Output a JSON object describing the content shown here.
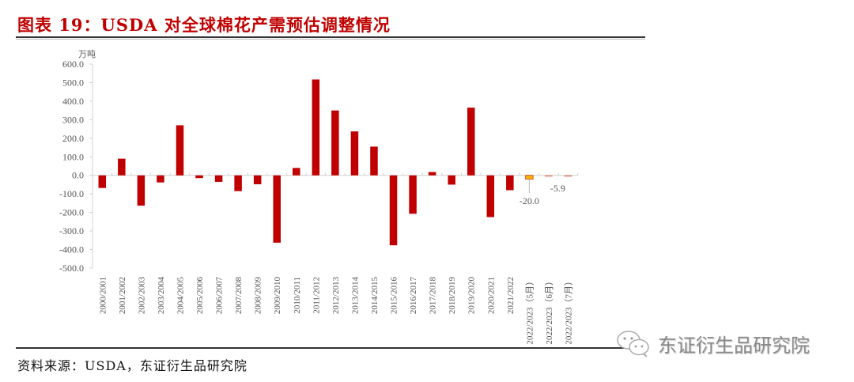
{
  "header": {
    "title": "图表 19：USDA 对全球棉花产需预估调整情况"
  },
  "footer": {
    "source": "资料来源：USDA，东证衍生品研究院",
    "watermark": "东证衍生品研究院"
  },
  "colors": {
    "title": "#c00000",
    "bar": "#c00000",
    "bar_highlight_fill": "#f5b800",
    "bar_highlight_stroke": "#e05020",
    "bar_light": "#e8715a",
    "axis": "#d0d0d0",
    "tick_label": "#555555"
  },
  "chart_data": {
    "type": "bar",
    "title": "USDA 对全球棉花产需预估调整情况",
    "unit_label": "万吨",
    "xlabel": "",
    "ylabel": "万吨",
    "ylim": [
      -500,
      600
    ],
    "yticks": [
      600,
      500,
      400,
      300,
      200,
      100,
      0,
      -100,
      -200,
      -300,
      -400,
      -500
    ],
    "ytick_labels": [
      "600.0",
      "500.0",
      "400.0",
      "300.0",
      "200.0",
      "100.0",
      "0.0",
      "-100.0",
      "-200.0",
      "-300.0",
      "-400.0",
      "-500.0"
    ],
    "grid": false,
    "legend": null,
    "categories": [
      "2000/2001",
      "2001/2002",
      "2002/2003",
      "2003/2004",
      "2004/2005",
      "2005/2006",
      "2006/2007",
      "2007/2008",
      "2008/2009",
      "2009/2010",
      "2010/2011",
      "2011/2012",
      "2012/2013",
      "2013/2014",
      "2014/2015",
      "2015/2016",
      "2016/2017",
      "2017/2018",
      "2018/2019",
      "2019/2020",
      "2020/2021",
      "2021/2022",
      "2022/2023（5月）",
      "2022/2023（6月）",
      "2022/2023（7月）"
    ],
    "values": [
      -68,
      90,
      -163,
      -38,
      270,
      -15,
      -35,
      -85,
      -48,
      -363,
      40,
      517,
      350,
      237,
      155,
      -377,
      -207,
      18,
      -50,
      365,
      -225,
      -80,
      -20.0,
      -5.9,
      -4
    ],
    "annotations": [
      {
        "category": "2022/2023（5月）",
        "text": "-20.0"
      },
      {
        "category": "2022/2023（6月）",
        "text": "-5.9"
      }
    ]
  }
}
